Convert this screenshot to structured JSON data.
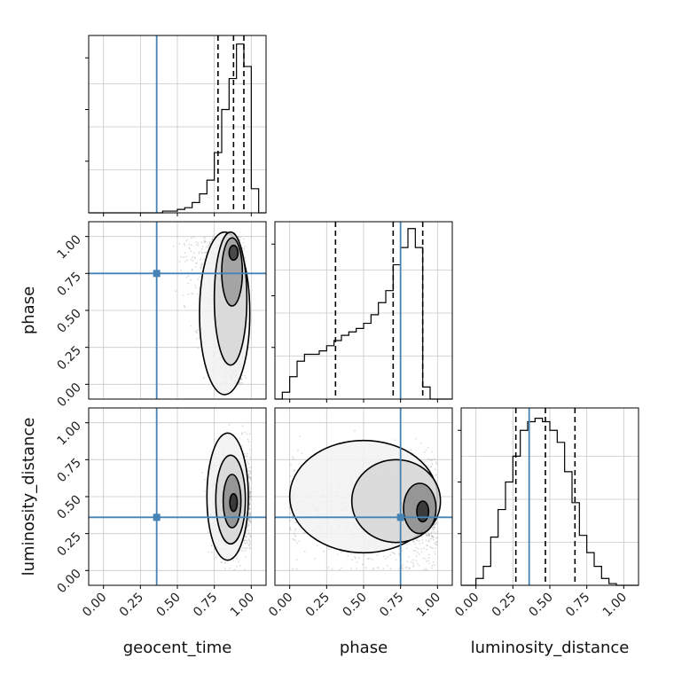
{
  "chart_data": {
    "type": "corner",
    "parameters": [
      "geocent_time",
      "phase",
      "luminosity_distance"
    ],
    "axis_range": [
      -0.1,
      1.1
    ],
    "tick_values": [
      0.0,
      0.25,
      0.5,
      0.75,
      1.0
    ],
    "tick_labels": [
      "0.00",
      "0.25",
      "0.50",
      "0.75",
      "1.00"
    ],
    "grid": true,
    "colors": {
      "truth": "#4682b4",
      "contour": "#000000",
      "scatter": "#999999",
      "histogram": "#000000"
    },
    "truths": {
      "geocent_time": 0.36,
      "phase": 0.75,
      "luminosity_distance": 0.36
    },
    "histograms": {
      "geocent_time": {
        "bin_edges": [
          -0.1,
          -0.05,
          0.0,
          0.05,
          0.1,
          0.15,
          0.2,
          0.25,
          0.3,
          0.35,
          0.4,
          0.45,
          0.5,
          0.55,
          0.6,
          0.65,
          0.7,
          0.75,
          0.8,
          0.85,
          0.9,
          0.95,
          1.0,
          1.05,
          1.1
        ],
        "counts": [
          0,
          0,
          0,
          0,
          0,
          0,
          0,
          0,
          0,
          0,
          0.01,
          0.01,
          0.02,
          0.03,
          0.06,
          0.11,
          0.19,
          0.35,
          0.6,
          0.78,
          0.98,
          0.85,
          0.14,
          0
        ],
        "quantile_lines": [
          0.775,
          0.88,
          0.95
        ]
      },
      "phase": {
        "bin_edges": [
          -0.1,
          -0.05,
          0.0,
          0.05,
          0.1,
          0.15,
          0.2,
          0.25,
          0.3,
          0.35,
          0.4,
          0.45,
          0.5,
          0.55,
          0.6,
          0.65,
          0.7,
          0.75,
          0.8,
          0.85,
          0.9,
          0.95,
          1.0,
          1.05,
          1.1
        ],
        "counts": [
          0,
          0.04,
          0.13,
          0.22,
          0.26,
          0.26,
          0.28,
          0.31,
          0.34,
          0.37,
          0.39,
          0.41,
          0.44,
          0.49,
          0.56,
          0.63,
          0.78,
          0.88,
          0.99,
          0.88,
          0.07,
          0,
          0,
          0
        ],
        "quantile_lines": [
          0.31,
          0.7,
          0.9
        ]
      },
      "luminosity_distance": {
        "bin_edges": [
          -0.1,
          -0.05,
          0.0,
          0.05,
          0.1,
          0.15,
          0.2,
          0.25,
          0.3,
          0.35,
          0.4,
          0.45,
          0.5,
          0.55,
          0.6,
          0.65,
          0.7,
          0.75,
          0.8,
          0.85,
          0.9,
          0.95,
          1.0,
          1.05,
          1.1
        ],
        "counts": [
          0,
          0,
          0.04,
          0.11,
          0.28,
          0.44,
          0.6,
          0.75,
          0.9,
          0.95,
          0.97,
          0.95,
          0.9,
          0.83,
          0.66,
          0.48,
          0.29,
          0.19,
          0.11,
          0.04,
          0.01,
          0,
          0,
          0
        ],
        "quantile_lines": [
          0.27,
          0.47,
          0.67
        ]
      }
    },
    "density_panels": [
      {
        "x": "geocent_time",
        "y": "phase",
        "peak": [
          0.88,
          0.89
        ],
        "x_extent": [
          0.55,
          1.0
        ],
        "y_extent": [
          0.0,
          1.0
        ]
      },
      {
        "x": "geocent_time",
        "y": "luminosity_distance",
        "peak": [
          0.88,
          0.46
        ],
        "x_extent": [
          0.55,
          1.0
        ],
        "y_extent": [
          0.1,
          0.95
        ]
      },
      {
        "x": "phase",
        "y": "luminosity_distance",
        "peak": [
          0.9,
          0.4
        ],
        "x_extent": [
          0.0,
          1.0
        ],
        "y_extent": [
          0.1,
          0.95
        ]
      }
    ]
  }
}
